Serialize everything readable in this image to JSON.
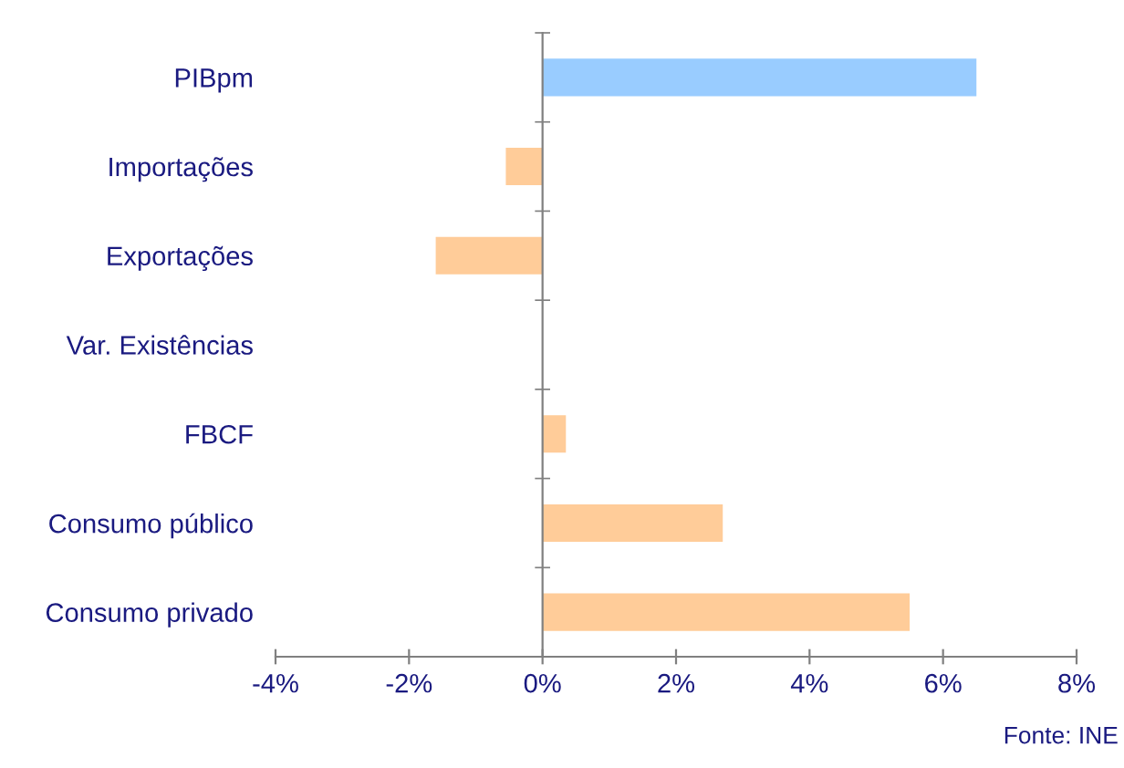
{
  "chart_data": {
    "type": "bar",
    "orientation": "horizontal",
    "categories": [
      "PIBpm",
      "Importações",
      "Exportações",
      "Var. Existências",
      "FBCF",
      "Consumo público",
      "Consumo privado"
    ],
    "values": [
      6.5,
      -0.55,
      -1.6,
      0,
      0.35,
      2.7,
      5.5
    ],
    "colors": [
      "#99ccff",
      "#ffcc99",
      "#ffcc99",
      "#ffcc99",
      "#ffcc99",
      "#ffcc99",
      "#ffcc99"
    ],
    "xlim": [
      -4,
      8
    ],
    "xticks": [
      {
        "value": -4,
        "label": "-4%"
      },
      {
        "value": -2,
        "label": "-2%"
      },
      {
        "value": 0,
        "label": "0%"
      },
      {
        "value": 2,
        "label": "2%"
      },
      {
        "value": 4,
        "label": "4%"
      },
      {
        "value": 6,
        "label": "6%"
      },
      {
        "value": 8,
        "label": "8%"
      }
    ],
    "annotations": [
      "Fonte: INE"
    ]
  }
}
